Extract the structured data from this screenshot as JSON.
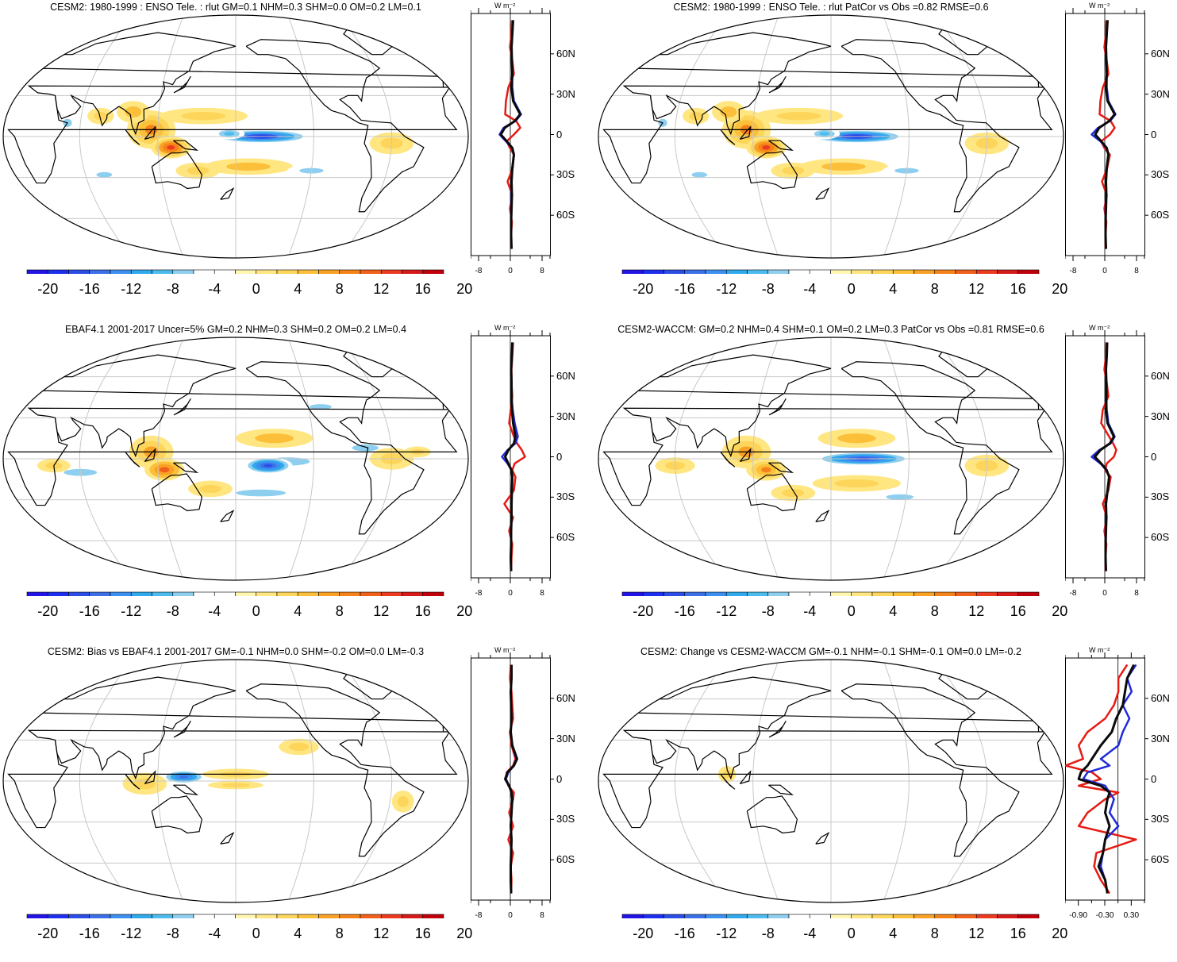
{
  "figure": {
    "colors": {
      "palette": [
        "#2314e6",
        "#1c2ff0",
        "#2a4de6",
        "#3a6fe8",
        "#3c8ff0",
        "#2fa8ec",
        "#4cbcee",
        "#8ecff0",
        "#ffffff",
        "#ffffff",
        "#fff6b0",
        "#ffe680",
        "#fdd55a",
        "#fbbf3a",
        "#f8a125",
        "#f58218",
        "#f0601a",
        "#ec3a20",
        "#d61a1a",
        "#c0000a"
      ],
      "model_line": "#0a0a0a",
      "obs_line": "#1f2bd9",
      "other_line": "#e51b14",
      "grid": "#c8c8c8"
    },
    "colorbar_labels": [
      "-20",
      "-16",
      "-12",
      "-8",
      "-4",
      "0",
      "4",
      "8",
      "12",
      "16",
      "20"
    ],
    "lat_labels": [
      "60N",
      "30N",
      "0",
      "30S",
      "60S"
    ],
    "units_label": "W m⁻²",
    "panels": [
      {
        "title": "CESM2: 1980-1999 : ENSO Tele. : rlut GM=0.1 NHM=0.3 SHM=0.0 OM=0.2 LM=0.1",
        "zonal_xticks": [
          "-8",
          "0",
          "8"
        ]
      },
      {
        "title": "CESM2: 1980-1999 : ENSO Tele. : rlut PatCor vs Obs =0.82 RMSE=0.6",
        "zonal_xticks": [
          "-8",
          "0",
          "8"
        ]
      },
      {
        "title": "EBAF4.1 2001-2017 Uncer=5% GM=0.2 NHM=0.3 SHM=0.2 OM=0.2 LM=0.4",
        "zonal_xticks": [
          "-8",
          "0",
          "8"
        ]
      },
      {
        "title": "CESM2-WACCM: GM=0.2 NHM=0.4 SHM=0.1 OM=0.2 LM=0.3 PatCor vs Obs =0.81 RMSE=0.6",
        "zonal_xticks": [
          "-8",
          "0",
          "8"
        ]
      },
      {
        "title": "CESM2: Bias vs EBAF4.1 2001-2017 GM=-0.1 NHM=0.0 SHM=-0.2 OM=0.0 LM=-0.3",
        "zonal_xticks": [
          "-8",
          "0",
          "8"
        ]
      },
      {
        "title": "CESM2: Change vs CESM2-WACCM GM=-0.1 NHM=-0.1 SHM=-0.1 OM=0.0 LM=-0.2",
        "zonal_xticks": [
          "-0.90",
          "-0.30",
          "0.30"
        ]
      }
    ]
  },
  "chart_data": {
    "type": "heatmap",
    "variable": "rlut",
    "units": "W m-2",
    "color_levels": [
      -20,
      -18,
      -16,
      -14,
      -12,
      -10,
      -8,
      -6,
      -4,
      -2,
      0,
      2,
      4,
      6,
      8,
      10,
      12,
      14,
      16,
      18,
      20
    ],
    "lat_ticks": [
      60,
      30,
      0,
      -30,
      -60
    ],
    "zonal_mean_profiles": {
      "lat": [
        85,
        75,
        65,
        55,
        45,
        35,
        25,
        15,
        10,
        5,
        0,
        -5,
        -10,
        -15,
        -25,
        -35,
        -45,
        -55,
        -65,
        -75,
        -85
      ],
      "panel_1": {
        "black": [
          0.6,
          0.4,
          0.2,
          0.3,
          0.4,
          0.2,
          0.6,
          2.4,
          1.0,
          -1.5,
          -2.5,
          -1.0,
          0.4,
          0.8,
          0.4,
          0.2,
          0.3,
          0.2,
          0.1,
          0.1,
          0.2
        ],
        "blue": [
          0.6,
          0.4,
          0.2,
          0.3,
          0.4,
          0.4,
          0.8,
          2.6,
          1.2,
          -1.8,
          -2.8,
          -1.2,
          0.3,
          0.8,
          0.4,
          0.2,
          0.2,
          0.1,
          0.1,
          0.1,
          0.2
        ],
        "red": [
          0.3,
          0.2,
          -0.2,
          0.4,
          0.8,
          -0.6,
          -1.2,
          -1.4,
          1.4,
          2.4,
          0.8,
          -1.0,
          -0.2,
          0.8,
          0.5,
          -0.8,
          0.4,
          -0.2,
          0.3,
          0.1,
          0.1
        ]
      },
      "panel_2": {
        "black": [
          0.6,
          0.4,
          0.2,
          0.3,
          0.4,
          0.2,
          0.6,
          2.4,
          1.0,
          -1.5,
          -2.5,
          -1.0,
          0.4,
          0.8,
          0.4,
          0.2,
          0.3,
          0.2,
          0.1,
          0.1,
          0.2
        ],
        "blue": [
          0.6,
          0.4,
          0.2,
          0.3,
          0.4,
          0.4,
          0.8,
          2.6,
          1.2,
          -1.8,
          -3.4,
          -1.2,
          0.3,
          0.8,
          0.4,
          0.2,
          0.2,
          0.1,
          0.1,
          0.1,
          0.2
        ],
        "red": [
          0.3,
          0.2,
          -0.2,
          0.4,
          0.8,
          -0.6,
          -1.2,
          -1.4,
          1.4,
          2.4,
          1.2,
          -1.0,
          -0.2,
          1.2,
          0.5,
          -0.8,
          0.4,
          -0.2,
          0.3,
          0.1,
          0.1
        ]
      },
      "panel_3": {
        "black": [
          0.4,
          0.3,
          0.1,
          0.2,
          0.2,
          0.3,
          0.6,
          1.2,
          0.8,
          -0.6,
          -1.4,
          -0.6,
          0.2,
          0.4,
          0.3,
          0.2,
          0.2,
          0.1,
          0.1,
          0.0,
          0.1
        ],
        "blue": [
          0.5,
          0.3,
          0.1,
          0.2,
          0.2,
          0.5,
          1.0,
          1.8,
          1.2,
          -0.8,
          -2.2,
          -0.8,
          0.2,
          0.4,
          0.3,
          0.2,
          0.2,
          0.1,
          0.1,
          0.0,
          0.1
        ],
        "red": [
          0.6,
          0.4,
          0.2,
          0.2,
          0.4,
          0.0,
          -0.4,
          0.8,
          1.6,
          2.8,
          3.6,
          1.0,
          0.4,
          1.2,
          0.8,
          -1.6,
          0.6,
          -0.4,
          0.4,
          0.2,
          0.1
        ]
      },
      "panel_4": {
        "black": [
          0.5,
          0.4,
          0.2,
          0.3,
          0.3,
          0.2,
          0.6,
          2.2,
          1.2,
          -1.2,
          -2.6,
          -1.0,
          0.4,
          1.0,
          0.6,
          0.2,
          0.3,
          0.2,
          0.1,
          0.1,
          0.2
        ],
        "blue": [
          0.5,
          0.4,
          0.2,
          0.3,
          0.3,
          0.4,
          0.8,
          2.4,
          1.4,
          -1.5,
          -3.4,
          -1.2,
          0.3,
          1.0,
          0.6,
          0.2,
          0.2,
          0.1,
          0.1,
          0.1,
          0.2
        ],
        "red": [
          0.3,
          0.2,
          -0.2,
          0.4,
          0.8,
          -0.6,
          -1.0,
          1.0,
          2.0,
          2.8,
          2.2,
          0.4,
          0.0,
          1.4,
          0.8,
          -0.6,
          0.4,
          -0.2,
          0.3,
          0.1,
          0.1
        ]
      },
      "panel_5": {
        "black": [
          0.2,
          0.2,
          0.0,
          0.1,
          0.2,
          0.0,
          0.4,
          1.6,
          0.8,
          -0.8,
          -1.4,
          -0.4,
          0.2,
          0.4,
          0.2,
          0.0,
          0.2,
          0.1,
          0.0,
          0.0,
          0.1
        ],
        "blue": [
          0.2,
          0.2,
          0.0,
          0.1,
          0.2,
          0.0,
          0.4,
          1.4,
          0.8,
          -0.6,
          -1.2,
          -0.4,
          0.2,
          0.4,
          0.2,
          0.0,
          0.2,
          0.1,
          0.0,
          0.0,
          0.1
        ],
        "red": [
          0.0,
          -0.2,
          0.2,
          0.4,
          0.6,
          -0.2,
          0.2,
          1.2,
          0.6,
          -1.0,
          -1.2,
          -0.6,
          0.8,
          0.6,
          -0.4,
          0.6,
          -0.6,
          0.6,
          0.0,
          0.2,
          0.1
        ]
      },
      "panel_6": {
        "black": [
          0.35,
          0.2,
          0.15,
          0.1,
          -0.05,
          -0.15,
          -0.4,
          -0.6,
          -0.7,
          -0.85,
          -0.9,
          -0.4,
          -0.2,
          -0.25,
          -0.3,
          -0.2,
          -0.3,
          -0.35,
          -0.45,
          -0.3,
          -0.25
        ],
        "blue": [
          0.4,
          0.2,
          0.3,
          0.1,
          0.25,
          0.1,
          0.0,
          -0.4,
          -0.2,
          -0.7,
          -0.8,
          -0.3,
          -0.2,
          -0.1,
          -0.2,
          0.0,
          -0.3,
          -0.35,
          -0.4,
          -0.3,
          -0.25
        ],
        "red": [
          0.2,
          0.0,
          0.0,
          -0.1,
          -0.3,
          -0.7,
          -0.9,
          -0.8,
          -1.2,
          -0.6,
          -0.4,
          -0.9,
          0.0,
          -0.3,
          -0.7,
          -0.9,
          0.4,
          -0.5,
          -0.55,
          -0.4,
          -0.2
        ]
      }
    }
  }
}
